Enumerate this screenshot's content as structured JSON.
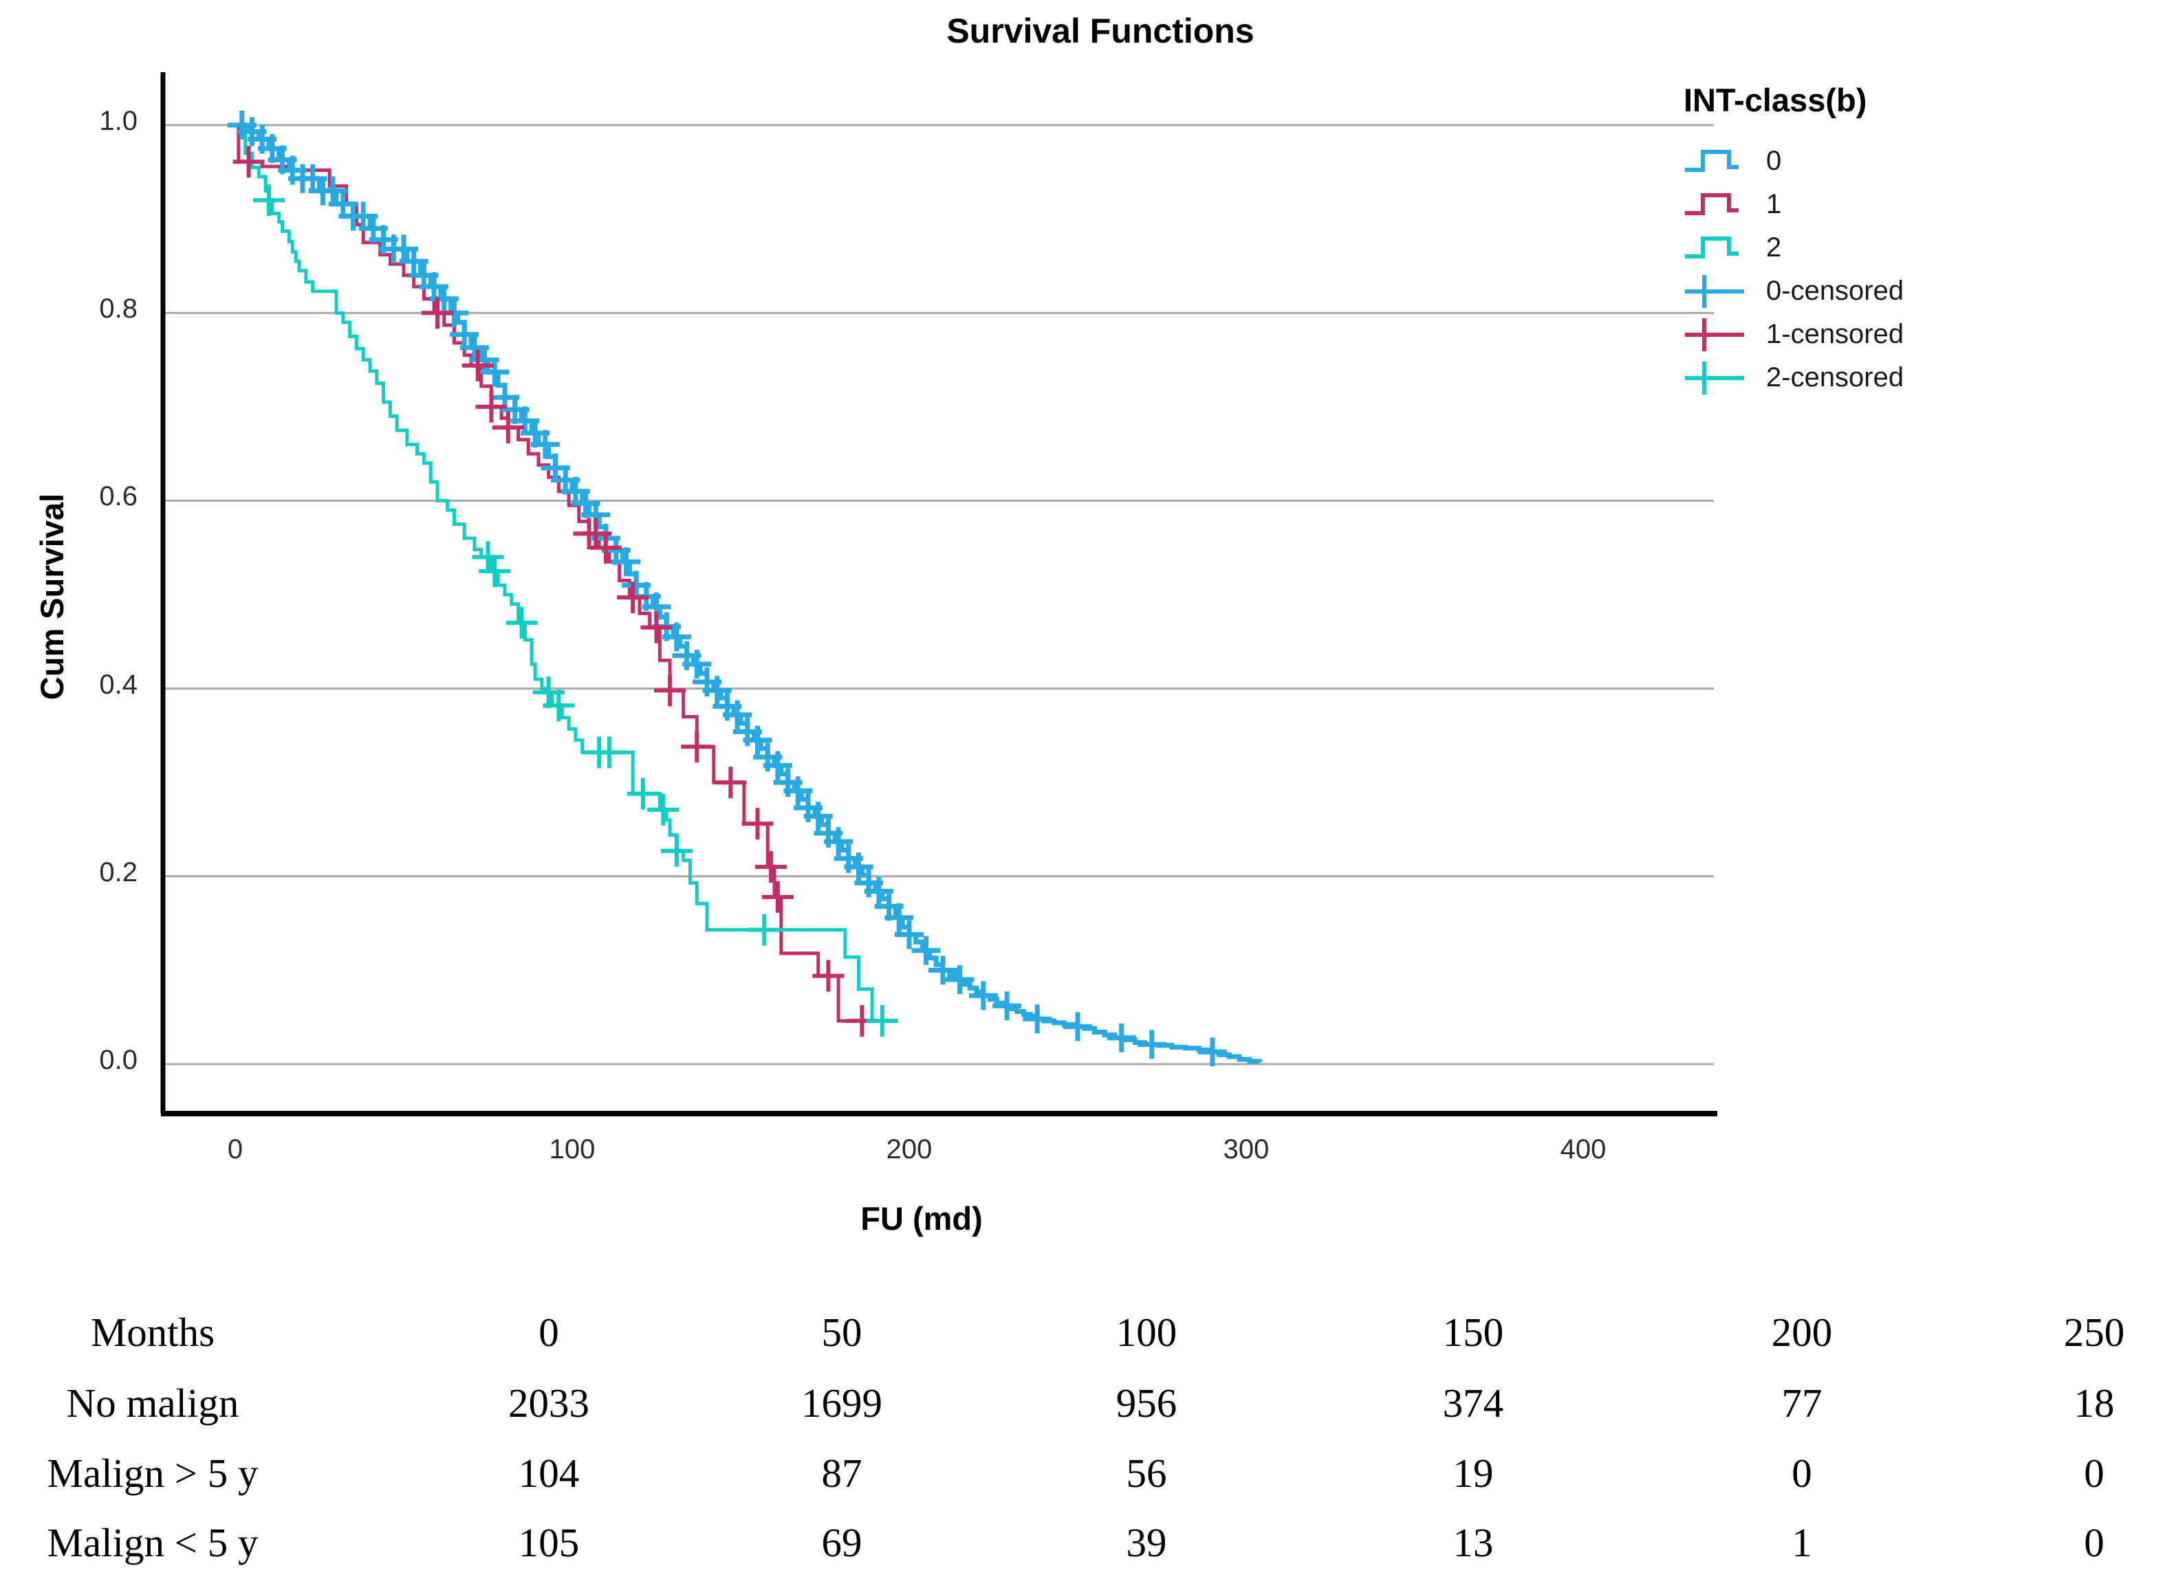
{
  "title": "Survival Functions",
  "axes": {
    "x_label": "FU (md)",
    "y_label": "Cum Survival"
  },
  "legend": {
    "title": "INT-class(b)",
    "items": [
      {
        "label": "0",
        "color": "#29a9e1",
        "glyph": "step-icon"
      },
      {
        "label": "1",
        "color": "#c42e66",
        "glyph": "step-icon"
      },
      {
        "label": "2",
        "color": "#0fcfc4",
        "glyph": "step-icon"
      },
      {
        "label": "0-censored",
        "color": "#29a9e1",
        "glyph": "censor-plus-icon"
      },
      {
        "label": "1-censored",
        "color": "#c42e66",
        "glyph": "censor-plus-icon"
      },
      {
        "label": "2-censored",
        "color": "#0fcfc4",
        "glyph": "censor-plus-icon"
      }
    ]
  },
  "chart_data": {
    "type": "line",
    "subtype": "kaplan-meier-step",
    "title": "Survival Functions",
    "xlabel": "FU (md)",
    "ylabel": "Cum Survival",
    "xlim": [
      -21,
      438
    ],
    "ylim": [
      -0.05,
      1.05
    ],
    "grid": true,
    "legend_position": "right",
    "x_ticks": [
      0,
      100,
      200,
      300,
      400
    ],
    "x_tick_labels": [
      "0",
      "100",
      "200",
      "300",
      "400"
    ],
    "y_ticks": [
      1.0,
      0.8,
      0.6,
      0.4,
      0.2,
      0.0
    ],
    "y_tick_labels": [
      "1.0",
      "0.8",
      "0.6",
      "0.4",
      "0.2",
      "0.0"
    ],
    "series": [
      {
        "name": "0",
        "color": "#29a9e1",
        "steps": [
          [
            0,
            1.0
          ],
          [
            4,
            0.993
          ],
          [
            7,
            0.985
          ],
          [
            10,
            0.975
          ],
          [
            13,
            0.963
          ],
          [
            16,
            0.952
          ],
          [
            20,
            0.943
          ],
          [
            25,
            0.93
          ],
          [
            30,
            0.916
          ],
          [
            35,
            0.903
          ],
          [
            40,
            0.89
          ],
          [
            44,
            0.878
          ],
          [
            47,
            0.868
          ],
          [
            51,
            0.855
          ],
          [
            55,
            0.84
          ],
          [
            58,
            0.828
          ],
          [
            61,
            0.815
          ],
          [
            64,
            0.8
          ],
          [
            66,
            0.79
          ],
          [
            68,
            0.777
          ],
          [
            70,
            0.763
          ],
          [
            73,
            0.75
          ],
          [
            75,
            0.737
          ],
          [
            78,
            0.723
          ],
          [
            80,
            0.71
          ],
          [
            83,
            0.697
          ],
          [
            85,
            0.685
          ],
          [
            88,
            0.672
          ],
          [
            90,
            0.66
          ],
          [
            93,
            0.647
          ],
          [
            95,
            0.635
          ],
          [
            98,
            0.622
          ],
          [
            100,
            0.61
          ],
          [
            103,
            0.597
          ],
          [
            105,
            0.585
          ],
          [
            108,
            0.572
          ],
          [
            110,
            0.56
          ],
          [
            113,
            0.547
          ],
          [
            115,
            0.535
          ],
          [
            117,
            0.522
          ],
          [
            119,
            0.51
          ],
          [
            122,
            0.498
          ],
          [
            124,
            0.487
          ],
          [
            126,
            0.476
          ],
          [
            128,
            0.466
          ],
          [
            130,
            0.455
          ],
          [
            132,
            0.445
          ],
          [
            134,
            0.435
          ],
          [
            136,
            0.426
          ],
          [
            138,
            0.416
          ],
          [
            140,
            0.407
          ],
          [
            142,
            0.398
          ],
          [
            144,
            0.39
          ],
          [
            146,
            0.381
          ],
          [
            148,
            0.372
          ],
          [
            150,
            0.363
          ],
          [
            152,
            0.354
          ],
          [
            154,
            0.345
          ],
          [
            156,
            0.336
          ],
          [
            158,
            0.327
          ],
          [
            160,
            0.318
          ],
          [
            162,
            0.309
          ],
          [
            164,
            0.3
          ],
          [
            166,
            0.291
          ],
          [
            168,
            0.282
          ],
          [
            170,
            0.273
          ],
          [
            172,
            0.264
          ],
          [
            174,
            0.255
          ],
          [
            176,
            0.246
          ],
          [
            178,
            0.237
          ],
          [
            180,
            0.228
          ],
          [
            182,
            0.219
          ],
          [
            184,
            0.21
          ],
          [
            186,
            0.201
          ],
          [
            188,
            0.193
          ],
          [
            190,
            0.184
          ],
          [
            192,
            0.176
          ],
          [
            194,
            0.168
          ],
          [
            196,
            0.156
          ],
          [
            198,
            0.146
          ],
          [
            200,
            0.138
          ],
          [
            202,
            0.13
          ],
          [
            204,
            0.121
          ],
          [
            206,
            0.113
          ],
          [
            208,
            0.106
          ],
          [
            210,
            0.1
          ],
          [
            212,
            0.095
          ],
          [
            214,
            0.09
          ],
          [
            216,
            0.085
          ],
          [
            218,
            0.081
          ],
          [
            220,
            0.077
          ],
          [
            222,
            0.073
          ],
          [
            224,
            0.069
          ],
          [
            226,
            0.065
          ],
          [
            228,
            0.062
          ],
          [
            230,
            0.059
          ],
          [
            232,
            0.056
          ],
          [
            234,
            0.053
          ],
          [
            236,
            0.051
          ],
          [
            238,
            0.048
          ],
          [
            240,
            0.046
          ],
          [
            243,
            0.044
          ],
          [
            246,
            0.042
          ],
          [
            249,
            0.04
          ],
          [
            252,
            0.038
          ],
          [
            255,
            0.034
          ],
          [
            258,
            0.031
          ],
          [
            261,
            0.028
          ],
          [
            264,
            0.026
          ],
          [
            267,
            0.023
          ],
          [
            270,
            0.021
          ],
          [
            274,
            0.02
          ],
          [
            278,
            0.018
          ],
          [
            282,
            0.017
          ],
          [
            286,
            0.015
          ],
          [
            289,
            0.013
          ],
          [
            292,
            0.01
          ],
          [
            295,
            0.008
          ],
          [
            298,
            0.005
          ],
          [
            301,
            0.003
          ],
          [
            304,
            0.002
          ]
        ],
        "censor_months": [
          2,
          5,
          8,
          11,
          14,
          17,
          20,
          23,
          26,
          29,
          32,
          35,
          38,
          41,
          44,
          47,
          50,
          53,
          56,
          59,
          62,
          65,
          68,
          71,
          74,
          77,
          80,
          83,
          86,
          89,
          92,
          95,
          98,
          101,
          104,
          107,
          110,
          113,
          116,
          119,
          122,
          125,
          128,
          131,
          134,
          137,
          140,
          143,
          146,
          149,
          152,
          155,
          158,
          161,
          164,
          167,
          170,
          173,
          176,
          179,
          182,
          185,
          188,
          191,
          194,
          197,
          200,
          205,
          210,
          215,
          222,
          229,
          238,
          250,
          263,
          272,
          290
        ]
      },
      {
        "name": "1",
        "color": "#c42e66",
        "steps": [
          [
            0,
            1.0
          ],
          [
            1,
            0.961
          ],
          [
            8,
            0.956
          ],
          [
            15,
            0.952
          ],
          [
            28,
            0.935
          ],
          [
            33,
            0.916
          ],
          [
            36,
            0.894
          ],
          [
            38,
            0.875
          ],
          [
            43,
            0.862
          ],
          [
            46,
            0.852
          ],
          [
            50,
            0.84
          ],
          [
            53,
            0.828
          ],
          [
            56,
            0.815
          ],
          [
            59,
            0.8
          ],
          [
            62,
            0.787
          ],
          [
            65,
            0.768
          ],
          [
            68,
            0.755
          ],
          [
            70,
            0.744
          ],
          [
            73,
            0.722
          ],
          [
            76,
            0.7
          ],
          [
            79,
            0.688
          ],
          [
            81,
            0.678
          ],
          [
            84,
            0.665
          ],
          [
            87,
            0.65
          ],
          [
            90,
            0.638
          ],
          [
            93,
            0.625
          ],
          [
            96,
            0.61
          ],
          [
            99,
            0.595
          ],
          [
            102,
            0.578
          ],
          [
            105,
            0.565
          ],
          [
            108,
            0.55
          ],
          [
            111,
            0.535
          ],
          [
            114,
            0.515
          ],
          [
            117,
            0.497
          ],
          [
            120,
            0.48
          ],
          [
            123,
            0.465
          ],
          [
            126,
            0.43
          ],
          [
            129,
            0.398
          ],
          [
            133,
            0.37
          ],
          [
            137,
            0.338
          ],
          [
            142,
            0.3
          ],
          [
            151,
            0.256
          ],
          [
            158,
            0.21
          ],
          [
            160,
            0.178
          ],
          [
            162,
            0.118
          ],
          [
            173,
            0.094
          ],
          [
            179,
            0.046
          ],
          [
            188,
            0.046
          ]
        ],
        "censor_months": [
          4,
          60,
          72,
          76,
          81,
          105,
          107,
          110,
          118,
          125,
          129,
          137,
          147,
          155,
          159,
          161,
          176,
          186
        ]
      },
      {
        "name": "2",
        "color": "#0fcfc4",
        "steps": [
          [
            0,
            1.0
          ],
          [
            3,
            0.97
          ],
          [
            5,
            0.955
          ],
          [
            7,
            0.945
          ],
          [
            9,
            0.93
          ],
          [
            10,
            0.92
          ],
          [
            11,
            0.906
          ],
          [
            13,
            0.897
          ],
          [
            14,
            0.887
          ],
          [
            16,
            0.876
          ],
          [
            17,
            0.865
          ],
          [
            18,
            0.855
          ],
          [
            19,
            0.845
          ],
          [
            21,
            0.833
          ],
          [
            23,
            0.823
          ],
          [
            30,
            0.8
          ],
          [
            32,
            0.79
          ],
          [
            34,
            0.775
          ],
          [
            36,
            0.762
          ],
          [
            38,
            0.75
          ],
          [
            40,
            0.738
          ],
          [
            42,
            0.725
          ],
          [
            44,
            0.705
          ],
          [
            46,
            0.69
          ],
          [
            48,
            0.675
          ],
          [
            51,
            0.66
          ],
          [
            54,
            0.65
          ],
          [
            56,
            0.64
          ],
          [
            58,
            0.62
          ],
          [
            60,
            0.6
          ],
          [
            63,
            0.59
          ],
          [
            65,
            0.575
          ],
          [
            68,
            0.56
          ],
          [
            71,
            0.548
          ],
          [
            73,
            0.54
          ],
          [
            76,
            0.525
          ],
          [
            78,
            0.51
          ],
          [
            80,
            0.5
          ],
          [
            82,
            0.49
          ],
          [
            84,
            0.47
          ],
          [
            86,
            0.452
          ],
          [
            88,
            0.426
          ],
          [
            89,
            0.41
          ],
          [
            91,
            0.4
          ],
          [
            92,
            0.396
          ],
          [
            94,
            0.382
          ],
          [
            97,
            0.369
          ],
          [
            99,
            0.357
          ],
          [
            101,
            0.345
          ],
          [
            103,
            0.332
          ],
          [
            118,
            0.288
          ],
          [
            126,
            0.271
          ],
          [
            128,
            0.26
          ],
          [
            129,
            0.244
          ],
          [
            131,
            0.227
          ],
          [
            133,
            0.217
          ],
          [
            135,
            0.193
          ],
          [
            137,
            0.171
          ],
          [
            140,
            0.143
          ],
          [
            181,
            0.114
          ],
          [
            185,
            0.08
          ],
          [
            189,
            0.046
          ],
          [
            193,
            0.046
          ]
        ],
        "censor_months": [
          10,
          75,
          77,
          85,
          93,
          96,
          108,
          111,
          121,
          127,
          131,
          157,
          192
        ]
      }
    ]
  },
  "risk_table": {
    "rows": [
      {
        "label": "Months",
        "values": [
          "0",
          "50",
          "100",
          "150",
          "200",
          "250"
        ]
      },
      {
        "label": "No malign",
        "values": [
          "2033",
          "1699",
          "956",
          "374",
          "77",
          "18"
        ]
      },
      {
        "label": "Malign > 5 y",
        "values": [
          "104",
          "87",
          "56",
          "19",
          "0",
          "0"
        ]
      },
      {
        "label": "Malign < 5 y",
        "values": [
          "105",
          "69",
          "39",
          "13",
          "1",
          "0"
        ]
      }
    ]
  }
}
